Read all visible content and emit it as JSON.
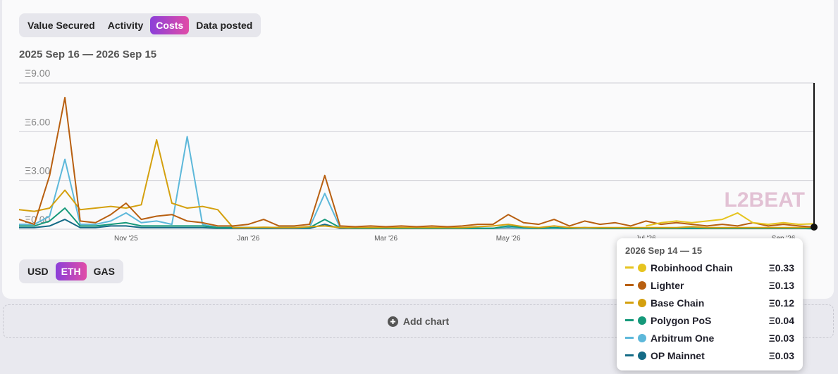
{
  "tabs": [
    "Value Secured",
    "Activity",
    "Costs",
    "Data posted"
  ],
  "date_range": "2025 Sep 16 — 2026 Sep 15",
  "unit_tabs": [
    "USD",
    "ETH",
    "GAS"
  ],
  "watermark": "L2BEAT",
  "add_chart": "Add chart",
  "chart_data": {
    "type": "line",
    "categories": [
      null,
      null,
      null,
      null,
      null,
      null,
      null,
      "Nov '25",
      null,
      null,
      null,
      null,
      null,
      null,
      null,
      "Jan '26",
      null,
      null,
      null,
      null,
      null,
      null,
      null,
      null,
      "Mar '26",
      null,
      null,
      null,
      null,
      null,
      null,
      null,
      "May '26",
      null,
      null,
      null,
      null,
      null,
      null,
      null,
      null,
      "Jul '26",
      null,
      null,
      null,
      null,
      null,
      null,
      null,
      null,
      "Sep '26",
      null,
      null
    ],
    "ylim": [
      0,
      9
    ],
    "yticks": [
      {
        "value": 0,
        "label": "Ξ0.00"
      },
      {
        "value": 3,
        "label": "Ξ3.00"
      },
      {
        "value": 6,
        "label": "Ξ6.00"
      },
      {
        "value": 9,
        "label": "Ξ9.00"
      }
    ],
    "grid": true,
    "series": [
      {
        "name": "Robinhood Chain",
        "color": "#e6c41f",
        "values": [
          null,
          null,
          null,
          null,
          null,
          null,
          null,
          null,
          null,
          null,
          null,
          null,
          null,
          null,
          null,
          null,
          null,
          null,
          null,
          null,
          null,
          null,
          null,
          null,
          null,
          null,
          null,
          null,
          null,
          null,
          null,
          null,
          null,
          null,
          null,
          null,
          null,
          null,
          null,
          null,
          null,
          0.2,
          0.4,
          0.5,
          0.4,
          0.5,
          0.6,
          1.0,
          0.4,
          0.3,
          0.4,
          0.3,
          0.33
        ]
      },
      {
        "name": "Lighter",
        "color": "#b85f10",
        "values": [
          0.6,
          0.3,
          3.3,
          8.1,
          0.5,
          0.4,
          0.9,
          1.6,
          0.6,
          0.8,
          0.9,
          0.5,
          0.4,
          0.2,
          0.2,
          0.3,
          0.6,
          0.2,
          0.2,
          0.3,
          3.3,
          0.2,
          0.15,
          0.2,
          0.15,
          0.2,
          0.15,
          0.2,
          0.15,
          0.2,
          0.3,
          0.3,
          0.9,
          0.4,
          0.3,
          0.6,
          0.2,
          0.5,
          0.3,
          0.4,
          0.2,
          0.5,
          0.3,
          0.4,
          0.3,
          0.2,
          0.3,
          0.2,
          0.4,
          0.2,
          0.3,
          0.2,
          0.13
        ]
      },
      {
        "name": "Base Chain",
        "color": "#d4a00e",
        "values": [
          1.2,
          1.1,
          1.3,
          2.4,
          1.2,
          1.3,
          1.4,
          1.3,
          1.5,
          5.5,
          1.6,
          1.3,
          1.4,
          1.2,
          0.1,
          0.1,
          0.12,
          0.1,
          0.1,
          0.15,
          0.2,
          0.1,
          0.1,
          0.1,
          0.1,
          0.1,
          0.1,
          0.1,
          0.1,
          0.1,
          0.15,
          0.2,
          0.3,
          0.15,
          0.1,
          0.2,
          0.1,
          0.1,
          0.1,
          0.1,
          0.1,
          0.1,
          0.1,
          0.1,
          0.15,
          0.1,
          0.1,
          0.1,
          0.1,
          0.1,
          0.1,
          0.1,
          0.12
        ]
      },
      {
        "name": "Polygon PoS",
        "color": "#15997a",
        "values": [
          0.2,
          0.2,
          0.5,
          1.3,
          0.2,
          0.2,
          0.3,
          0.4,
          0.2,
          0.2,
          0.2,
          0.2,
          0.2,
          0.1,
          0.1,
          0.1,
          0.1,
          0.1,
          0.1,
          0.1,
          0.6,
          0.1,
          0.05,
          0.05,
          0.05,
          0.05,
          0.05,
          0.05,
          0.05,
          0.05,
          0.05,
          0.05,
          0.2,
          0.1,
          0.05,
          0.1,
          0.05,
          0.1,
          0.05,
          0.05,
          0.05,
          0.05,
          0.05,
          0.05,
          0.05,
          0.05,
          0.05,
          0.05,
          0.05,
          0.05,
          0.05,
          0.05,
          0.04
        ]
      },
      {
        "name": "Arbitrum One",
        "color": "#5db8da",
        "values": [
          0.3,
          0.3,
          0.8,
          4.3,
          0.3,
          0.3,
          0.5,
          1.0,
          0.4,
          0.5,
          0.3,
          5.7,
          0.3,
          0.1,
          0.1,
          0.1,
          0.1,
          0.1,
          0.1,
          0.1,
          2.2,
          0.1,
          0.05,
          0.05,
          0.05,
          0.05,
          0.05,
          0.05,
          0.05,
          0.05,
          0.05,
          0.05,
          0.15,
          0.05,
          0.05,
          0.05,
          0.05,
          0.05,
          0.05,
          0.05,
          0.05,
          0.05,
          0.05,
          0.05,
          0.05,
          0.05,
          0.05,
          0.05,
          0.05,
          0.05,
          0.05,
          0.05,
          0.03
        ]
      },
      {
        "name": "OP Mainnet",
        "color": "#146b86",
        "values": [
          0.1,
          0.1,
          0.2,
          0.6,
          0.1,
          0.1,
          0.2,
          0.2,
          0.1,
          0.1,
          0.1,
          0.1,
          0.1,
          0.05,
          0.05,
          0.05,
          0.05,
          0.05,
          0.05,
          0.05,
          0.3,
          0.05,
          0.05,
          0.05,
          0.05,
          0.05,
          0.05,
          0.05,
          0.05,
          0.05,
          0.05,
          0.05,
          0.1,
          0.05,
          0.05,
          0.05,
          0.05,
          0.05,
          0.05,
          0.05,
          0.05,
          0.05,
          0.05,
          0.05,
          0.05,
          0.05,
          0.05,
          0.05,
          0.05,
          0.05,
          0.05,
          0.05,
          0.03
        ]
      }
    ],
    "tooltip": {
      "title": "2026 Sep 14 — 15",
      "values": [
        0.33,
        0.13,
        0.12,
        0.04,
        0.03,
        0.03
      ],
      "value_labels": [
        "Ξ0.33",
        "Ξ0.13",
        "Ξ0.12",
        "Ξ0.04",
        "Ξ0.03",
        "Ξ0.03"
      ]
    }
  }
}
